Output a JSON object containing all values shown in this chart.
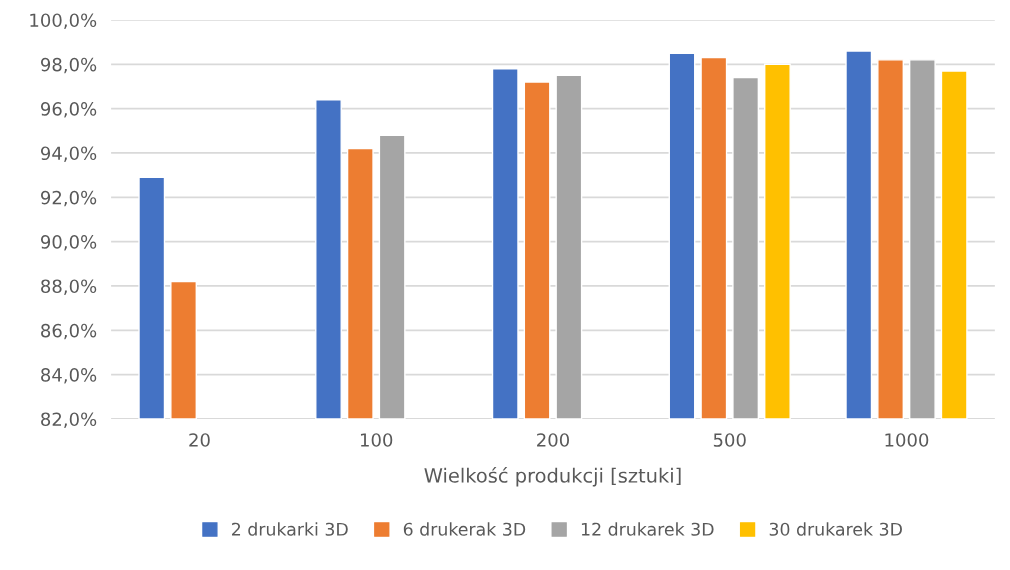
{
  "chart_data": {
    "type": "bar",
    "xlabel": "Wielkość produkcji [sztuki]",
    "categories": [
      "20",
      "100",
      "200",
      "500",
      "1000"
    ],
    "series": [
      {
        "name": "2 drukarki 3D",
        "color": "#4472c4",
        "values": [
          92.9,
          96.4,
          97.8,
          98.5,
          98.6
        ]
      },
      {
        "name": "6 drukerak 3D",
        "color": "#ed7d31",
        "values": [
          88.2,
          94.2,
          97.2,
          98.3,
          98.2
        ]
      },
      {
        "name": "12 drukarek 3D",
        "color": "#a5a5a5",
        "values": [
          null,
          94.8,
          97.5,
          97.4,
          98.2
        ]
      },
      {
        "name": "30 drukarek 3D",
        "color": "#ffc000",
        "values": [
          null,
          null,
          null,
          98.0,
          97.7
        ]
      }
    ],
    "ylim": [
      82,
      100
    ],
    "yticks": [
      {
        "value": 82,
        "label": "82,0%"
      },
      {
        "value": 84,
        "label": "84,0%"
      },
      {
        "value": 86,
        "label": "86,0%"
      },
      {
        "value": 88,
        "label": "88,0%"
      },
      {
        "value": 90,
        "label": "90,0%"
      },
      {
        "value": 92,
        "label": "92,0%"
      },
      {
        "value": 94,
        "label": "94,0%"
      },
      {
        "value": 96,
        "label": "96,0%"
      },
      {
        "value": 98,
        "label": "98,0%"
      },
      {
        "value": 100,
        "label": "100,0%"
      }
    ],
    "grid": "y",
    "legend": "bottom"
  }
}
